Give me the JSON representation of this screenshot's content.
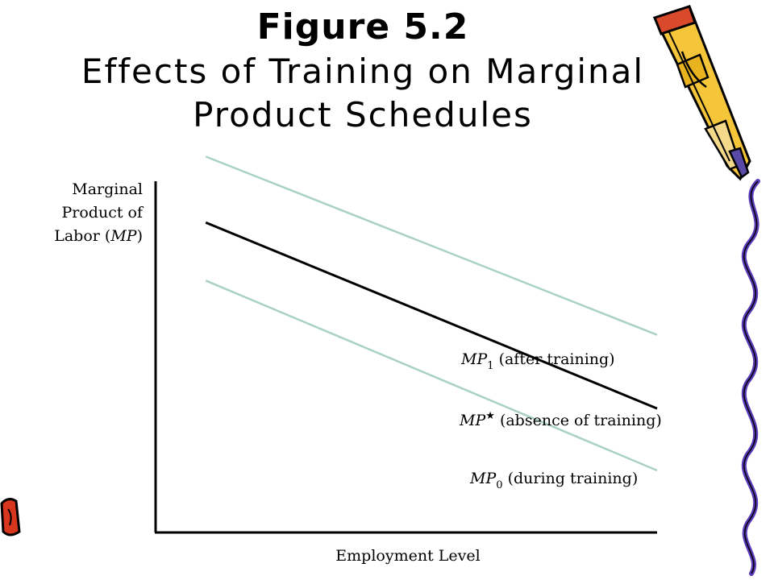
{
  "slide": {
    "title_line1": "Figure 5.2",
    "title_line2": "Effects of Training on Marginal",
    "title_line3": "Product Schedules"
  },
  "chart_data": {
    "type": "line",
    "ylabel_lines": [
      "Marginal",
      "Product of",
      "Labor ("
    ],
    "ylabel_italic": "MP",
    "ylabel_close": ")",
    "xlabel": "Employment Level",
    "grid": false,
    "x_ticks": [],
    "y_ticks": [],
    "xlim": [
      0,
      10
    ],
    "ylim": [
      0,
      10
    ],
    "series": [
      {
        "key": "mp1",
        "label_italic": "MP",
        "label_sub": "1",
        "label_sup": "",
        "label_text": " (after training)",
        "color": "#a9d2c4",
        "x": [
          1,
          10
        ],
        "y": [
          9.7,
          5.1
        ]
      },
      {
        "key": "mpstar",
        "label_italic": "MP",
        "label_sub": "",
        "label_sup": "★",
        "label_text": " (absence of training)",
        "color": "#000000",
        "x": [
          1,
          10
        ],
        "y": [
          8.0,
          3.2
        ]
      },
      {
        "key": "mp0",
        "label_italic": "MP",
        "label_sub": "0",
        "label_sup": "",
        "label_text": " (during training)",
        "color": "#a9d2c4",
        "x": [
          1,
          10
        ],
        "y": [
          6.5,
          1.6
        ]
      }
    ]
  },
  "decorations": {
    "pencil_icon": "pencil-icon",
    "squiggle_icon": "squiggle-border-icon",
    "corner_icon": "corner-clip-icon"
  }
}
